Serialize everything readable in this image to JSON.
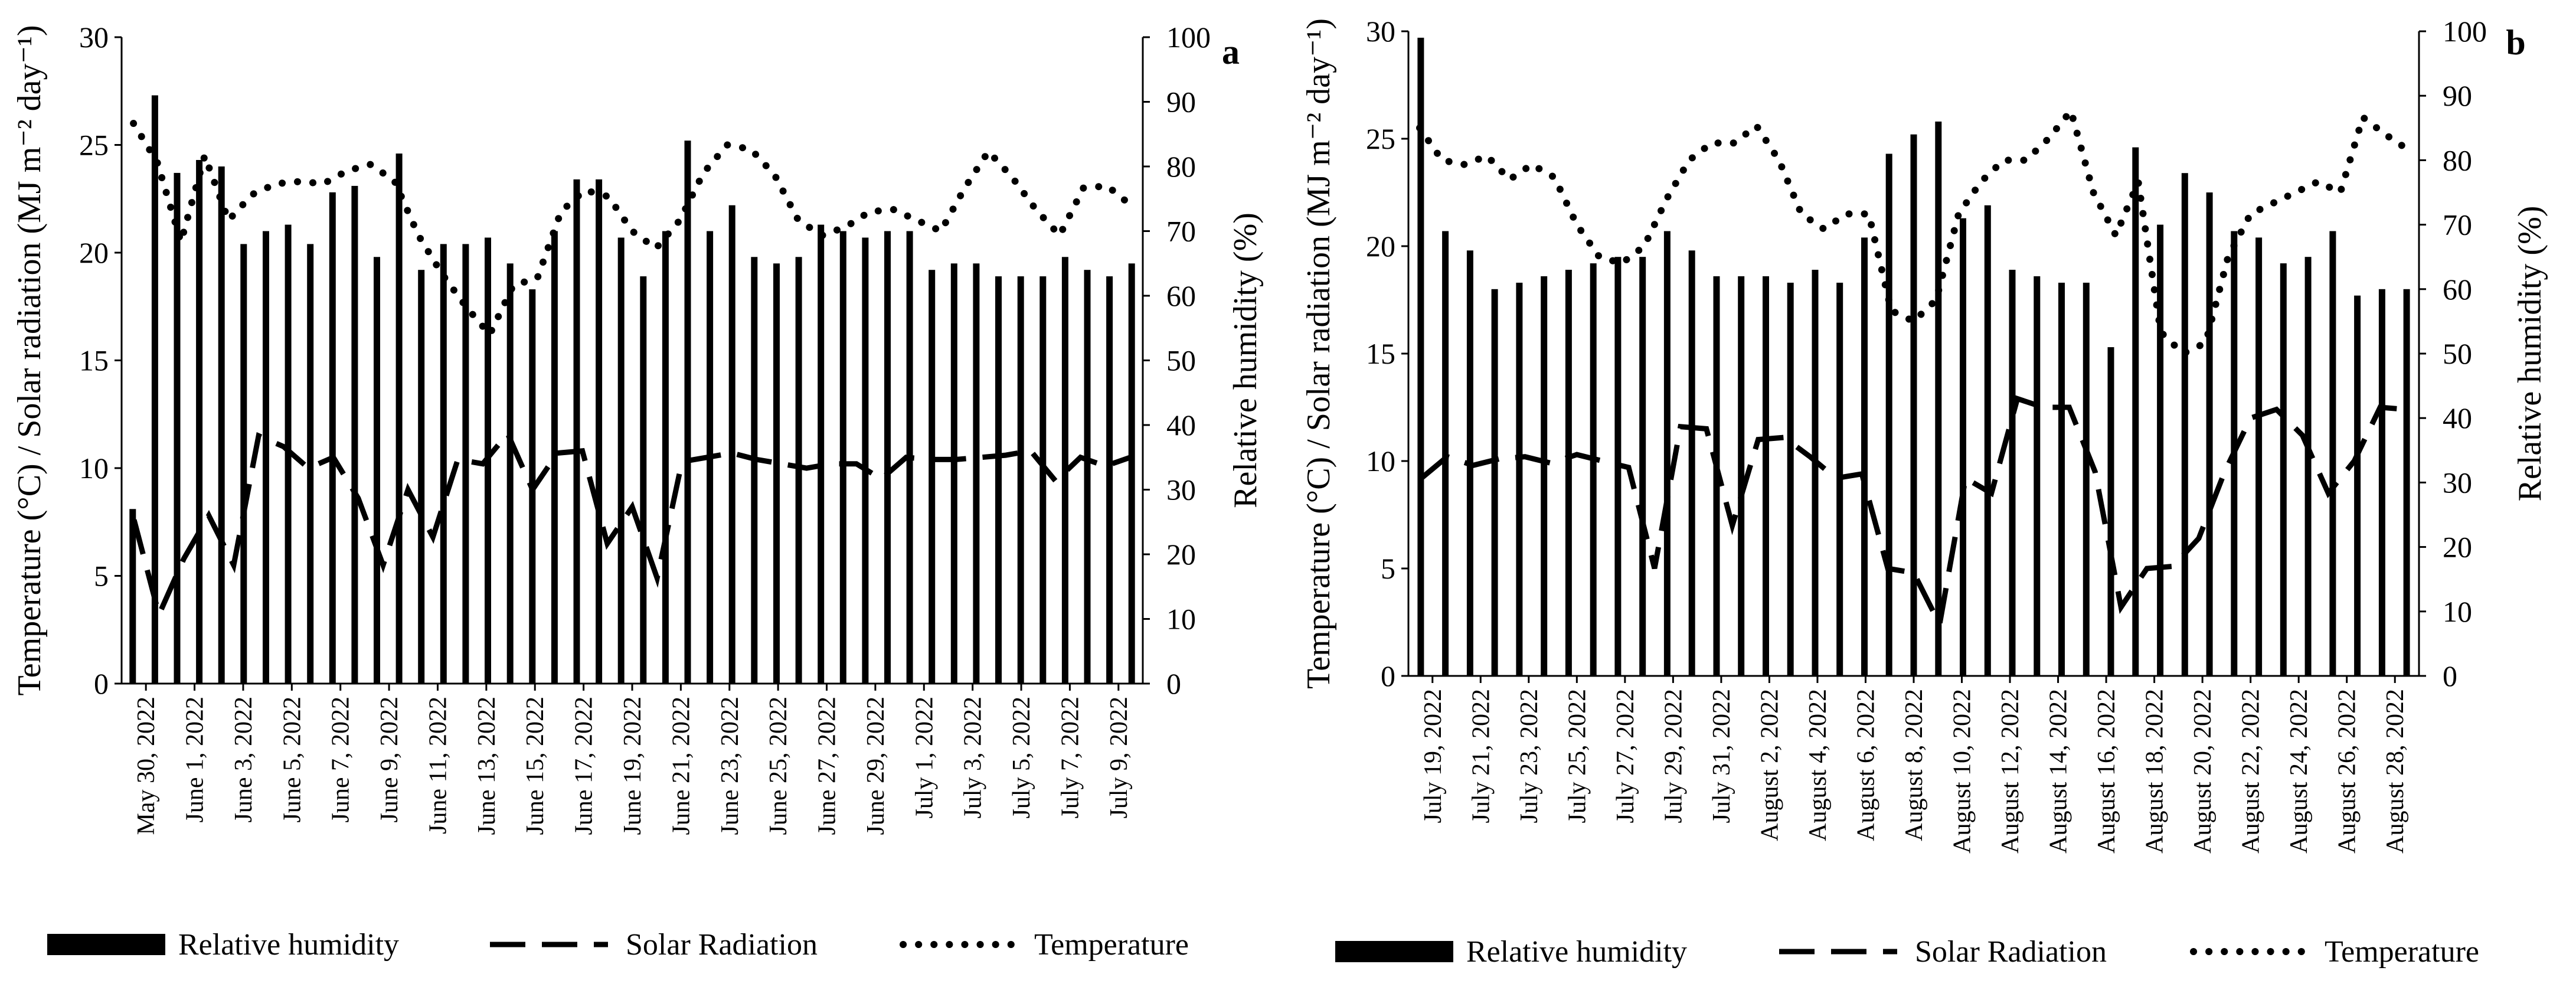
{
  "legend": {
    "humidity": "Relative humidity",
    "solar": "Solar Radiation",
    "temperature": "Temperature"
  },
  "chart_data": [
    {
      "type": "bar",
      "panel": "a",
      "ylabel_left": "Temperature (°C) / Solar radiation (MJ m⁻² day⁻¹)",
      "ylabel_right": "Relative humidity (%)",
      "ylim_left": [
        0,
        30
      ],
      "ylim_right": [
        0,
        100
      ],
      "yticks_left": [
        0,
        5,
        10,
        15,
        20,
        25,
        30
      ],
      "yticks_right": [
        0,
        10,
        20,
        30,
        40,
        50,
        60,
        70,
        80,
        90,
        100
      ],
      "x_tick_labels": [
        "May 30, 2022",
        "June 1, 2022",
        "June 3, 2022",
        "June 5, 2022",
        "June 7, 2022",
        "June 9, 2022",
        "June 11, 2022",
        "June 13, 2022",
        "June 15, 2022",
        "June 17, 2022",
        "June 19, 2022",
        "June 21, 2022",
        "June 23, 2022",
        "June 25, 2022",
        "June 27, 2022",
        "June 29, 2022",
        "July 1, 2022",
        "July 3, 2022",
        "July 5, 2022",
        "July 7, 2022",
        "July 9, 2022"
      ],
      "series": [
        {
          "name": "Relative humidity",
          "axis": "right",
          "values": [
            27,
            91,
            79,
            81,
            80,
            68,
            70,
            71,
            68,
            76,
            77,
            66,
            82,
            64,
            68,
            68,
            69,
            65,
            61,
            70,
            78,
            78,
            69,
            63,
            70,
            84,
            70,
            74,
            66,
            65,
            66,
            71,
            70,
            69,
            70,
            70,
            64,
            65,
            65,
            63,
            63,
            63,
            66,
            64,
            63,
            65
          ]
        },
        {
          "name": "Solar Radiation",
          "axis": "left",
          "values": [
            7.6,
            3.2,
            5.8,
            7.8,
            5.5,
            11.5,
            11.0,
            10.0,
            10.5,
            8.6,
            5.5,
            9.0,
            6.8,
            10.4,
            10.2,
            11.6,
            9.0,
            10.7,
            10.8,
            6.5,
            8.2,
            4.9,
            10.3,
            10.5,
            10.7,
            10.4,
            10.2,
            10.0,
            10.2,
            10.2,
            9.5,
            10.5,
            10.4,
            10.4,
            10.5,
            10.6,
            10.8,
            9.4,
            10.5,
            10.1,
            10.5
          ]
        },
        {
          "name": "Temperature",
          "axis": "left",
          "values": [
            26.0,
            24.2,
            20.5,
            24.5,
            21.5,
            22.7,
            23.2,
            23.3,
            23.2,
            23.8,
            24.1,
            23.3,
            20.8,
            19.0,
            17.5,
            16.2,
            18.5,
            18.8,
            21.9,
            22.9,
            22.6,
            21.0,
            20.2,
            21.5,
            23.7,
            25.0,
            24.8,
            23.6,
            21.5,
            20.8,
            21.2,
            21.9,
            22.0,
            21.5,
            21.0,
            23.0,
            24.7,
            23.5,
            22.0,
            20.8,
            23.0,
            23.1,
            22.2
          ]
        }
      ]
    },
    {
      "type": "bar",
      "panel": "b",
      "ylabel_left": "Temperature (°C) / Solar radiation (MJ m⁻² day⁻¹)",
      "ylabel_right": "Relative humidity (%)",
      "ylim_left": [
        0,
        30
      ],
      "ylim_right": [
        0,
        100
      ],
      "yticks_left": [
        0,
        5,
        10,
        15,
        20,
        25,
        30
      ],
      "yticks_right": [
        0,
        10,
        20,
        30,
        40,
        50,
        60,
        70,
        80,
        90,
        100
      ],
      "x_tick_labels": [
        "July 19, 2022",
        "July 21, 2022",
        "July 23, 2022",
        "July 25, 2022",
        "July 27, 2022",
        "July 29, 2022",
        "July 31, 2022",
        "August 2, 2022",
        "August 4, 2022",
        "August 6, 2022",
        "August 8, 2022",
        "August 10, 2022",
        "August 12, 2022",
        "August 14, 2022",
        "August 16, 2022",
        "August 18, 2022",
        "August 20, 2022",
        "August 22, 2022",
        "August 24, 2022",
        "August 26, 2022",
        "August 28, 2022"
      ],
      "series": [
        {
          "name": "Relative humidity",
          "axis": "right",
          "values": [
            99,
            69,
            66,
            60,
            61,
            62,
            63,
            64,
            65,
            65,
            69,
            66,
            62,
            62,
            62,
            61,
            63,
            61,
            68,
            81,
            84,
            86,
            71,
            73,
            63,
            62,
            61,
            61,
            51,
            82,
            70,
            78,
            75,
            69,
            68,
            64,
            65,
            69,
            59,
            60,
            60
          ]
        },
        {
          "name": "Solar Radiation",
          "axis": "left",
          "values": [
            9.2,
            10.2,
            9.8,
            10.1,
            10.2,
            9.9,
            10.3,
            10.0,
            9.7,
            5.0,
            11.6,
            11.5,
            7.0,
            11.0,
            11.1,
            10.2,
            9.2,
            9.4,
            5.0,
            4.8,
            2.4,
            9.2,
            8.5,
            12.9,
            12.5,
            12.5,
            9.5,
            3.2,
            5.0,
            5.1,
            6.4,
            9.5,
            12.0,
            12.4,
            11.2,
            8.5,
            10.0,
            12.5,
            12.4
          ]
        },
        {
          "name": "Temperature",
          "axis": "left",
          "values": [
            25.5,
            24.0,
            23.8,
            24.2,
            23.1,
            23.8,
            23.2,
            21.0,
            19.5,
            19.2,
            20.0,
            22.2,
            24.0,
            24.8,
            24.8,
            25.6,
            24.0,
            21.5,
            20.8,
            21.5,
            21.5,
            17.0,
            16.5,
            17.5,
            21.5,
            23.0,
            24.0,
            24.0,
            25.0,
            26.3,
            22.5,
            20.5,
            23.0,
            16.0,
            15.0,
            15.5,
            19.5,
            21.5,
            22.0,
            22.5,
            23.0,
            22.5,
            26.0,
            25.2,
            24.5
          ]
        }
      ]
    }
  ]
}
